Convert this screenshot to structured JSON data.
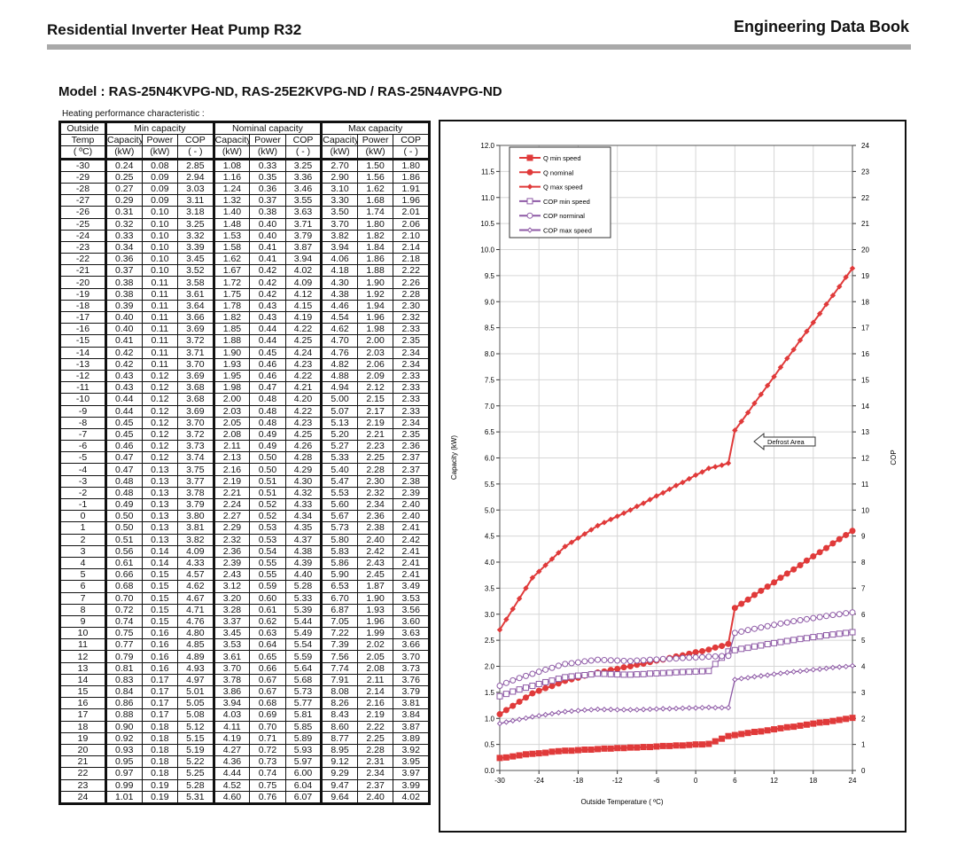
{
  "header": {
    "title": "Residential Inverter Heat Pump R32",
    "book": "Engineering Data Book"
  },
  "model": "Model  :  RAS-25N4KVPG-ND, RAS-25E2KVPG-ND / RAS-25N4AVPG-ND",
  "table": {
    "caption": "Heating performance  characteristic  :",
    "groups": [
      "Min capacity",
      "Nominal capacity",
      "Max capacity"
    ],
    "first_col": [
      "Outside",
      "Temp",
      "( ºC)"
    ],
    "sub_headers": [
      "Capacity",
      "Power",
      "COP"
    ],
    "units": [
      "(kW)",
      "(kW)",
      "( - )"
    ],
    "rows": [
      [
        "-30",
        "0.24",
        "0.08",
        "2.85",
        "1.08",
        "0.33",
        "3.25",
        "2.70",
        "1.50",
        "1.80"
      ],
      [
        "-29",
        "0.25",
        "0.09",
        "2.94",
        "1.16",
        "0.35",
        "3.36",
        "2.90",
        "1.56",
        "1.86"
      ],
      [
        "-28",
        "0.27",
        "0.09",
        "3.03",
        "1.24",
        "0.36",
        "3.46",
        "3.10",
        "1.62",
        "1.91"
      ],
      [
        "-27",
        "0.29",
        "0.09",
        "3.11",
        "1.32",
        "0.37",
        "3.55",
        "3.30",
        "1.68",
        "1.96"
      ],
      [
        "-26",
        "0.31",
        "0.10",
        "3.18",
        "1.40",
        "0.38",
        "3.63",
        "3.50",
        "1.74",
        "2.01"
      ],
      [
        "-25",
        "0.32",
        "0.10",
        "3.25",
        "1.48",
        "0.40",
        "3.71",
        "3.70",
        "1.80",
        "2.06"
      ],
      [
        "-24",
        "0.33",
        "0.10",
        "3.32",
        "1.53",
        "0.40",
        "3.79",
        "3.82",
        "1.82",
        "2.10"
      ],
      [
        "-23",
        "0.34",
        "0.10",
        "3.39",
        "1.58",
        "0.41",
        "3.87",
        "3.94",
        "1.84",
        "2.14"
      ],
      [
        "-22",
        "0.36",
        "0.10",
        "3.45",
        "1.62",
        "0.41",
        "3.94",
        "4.06",
        "1.86",
        "2.18"
      ],
      [
        "-21",
        "0.37",
        "0.10",
        "3.52",
        "1.67",
        "0.42",
        "4.02",
        "4.18",
        "1.88",
        "2.22"
      ],
      [
        "-20",
        "0.38",
        "0.11",
        "3.58",
        "1.72",
        "0.42",
        "4.09",
        "4.30",
        "1.90",
        "2.26"
      ],
      [
        "-19",
        "0.38",
        "0.11",
        "3.61",
        "1.75",
        "0.42",
        "4.12",
        "4.38",
        "1.92",
        "2.28"
      ],
      [
        "-18",
        "0.39",
        "0.11",
        "3.64",
        "1.78",
        "0.43",
        "4.15",
        "4.46",
        "1.94",
        "2.30"
      ],
      [
        "-17",
        "0.40",
        "0.11",
        "3.66",
        "1.82",
        "0.43",
        "4.19",
        "4.54",
        "1.96",
        "2.32"
      ],
      [
        "-16",
        "0.40",
        "0.11",
        "3.69",
        "1.85",
        "0.44",
        "4.22",
        "4.62",
        "1.98",
        "2.33"
      ],
      [
        "-15",
        "0.41",
        "0.11",
        "3.72",
        "1.88",
        "0.44",
        "4.25",
        "4.70",
        "2.00",
        "2.35"
      ],
      [
        "-14",
        "0.42",
        "0.11",
        "3.71",
        "1.90",
        "0.45",
        "4.24",
        "4.76",
        "2.03",
        "2.34"
      ],
      [
        "-13",
        "0.42",
        "0.11",
        "3.70",
        "1.93",
        "0.46",
        "4.23",
        "4.82",
        "2.06",
        "2.34"
      ],
      [
        "-12",
        "0.43",
        "0.12",
        "3.69",
        "1.95",
        "0.46",
        "4.22",
        "4.88",
        "2.09",
        "2.33"
      ],
      [
        "-11",
        "0.43",
        "0.12",
        "3.68",
        "1.98",
        "0.47",
        "4.21",
        "4.94",
        "2.12",
        "2.33"
      ],
      [
        "-10",
        "0.44",
        "0.12",
        "3.68",
        "2.00",
        "0.48",
        "4.20",
        "5.00",
        "2.15",
        "2.33"
      ],
      [
        "-9",
        "0.44",
        "0.12",
        "3.69",
        "2.03",
        "0.48",
        "4.22",
        "5.07",
        "2.17",
        "2.33"
      ],
      [
        "-8",
        "0.45",
        "0.12",
        "3.70",
        "2.05",
        "0.48",
        "4.23",
        "5.13",
        "2.19",
        "2.34"
      ],
      [
        "-7",
        "0.45",
        "0.12",
        "3.72",
        "2.08",
        "0.49",
        "4.25",
        "5.20",
        "2.21",
        "2.35"
      ],
      [
        "-6",
        "0.46",
        "0.12",
        "3.73",
        "2.11",
        "0.49",
        "4.26",
        "5.27",
        "2.23",
        "2.36"
      ],
      [
        "-5",
        "0.47",
        "0.12",
        "3.74",
        "2.13",
        "0.50",
        "4.28",
        "5.33",
        "2.25",
        "2.37"
      ],
      [
        "-4",
        "0.47",
        "0.13",
        "3.75",
        "2.16",
        "0.50",
        "4.29",
        "5.40",
        "2.28",
        "2.37"
      ],
      [
        "-3",
        "0.48",
        "0.13",
        "3.77",
        "2.19",
        "0.51",
        "4.30",
        "5.47",
        "2.30",
        "2.38"
      ],
      [
        "-2",
        "0.48",
        "0.13",
        "3.78",
        "2.21",
        "0.51",
        "4.32",
        "5.53",
        "2.32",
        "2.39"
      ],
      [
        "-1",
        "0.49",
        "0.13",
        "3.79",
        "2.24",
        "0.52",
        "4.33",
        "5.60",
        "2.34",
        "2.40"
      ],
      [
        "0",
        "0.50",
        "0.13",
        "3.80",
        "2.27",
        "0.52",
        "4.34",
        "5.67",
        "2.36",
        "2.40"
      ],
      [
        "1",
        "0.50",
        "0.13",
        "3.81",
        "2.29",
        "0.53",
        "4.35",
        "5.73",
        "2.38",
        "2.41"
      ],
      [
        "2",
        "0.51",
        "0.13",
        "3.82",
        "2.32",
        "0.53",
        "4.37",
        "5.80",
        "2.40",
        "2.42"
      ],
      [
        "3",
        "0.56",
        "0.14",
        "4.09",
        "2.36",
        "0.54",
        "4.38",
        "5.83",
        "2.42",
        "2.41"
      ],
      [
        "4",
        "0.61",
        "0.14",
        "4.33",
        "2.39",
        "0.55",
        "4.39",
        "5.86",
        "2.43",
        "2.41"
      ],
      [
        "5",
        "0.66",
        "0.15",
        "4.57",
        "2.43",
        "0.55",
        "4.40",
        "5.90",
        "2.45",
        "2.41"
      ],
      [
        "6",
        "0.68",
        "0.15",
        "4.62",
        "3.12",
        "0.59",
        "5.28",
        "6.53",
        "1.87",
        "3.49"
      ],
      [
        "7",
        "0.70",
        "0.15",
        "4.67",
        "3.20",
        "0.60",
        "5.33",
        "6.70",
        "1.90",
        "3.53"
      ],
      [
        "8",
        "0.72",
        "0.15",
        "4.71",
        "3.28",
        "0.61",
        "5.39",
        "6.87",
        "1.93",
        "3.56"
      ],
      [
        "9",
        "0.74",
        "0.15",
        "4.76",
        "3.37",
        "0.62",
        "5.44",
        "7.05",
        "1.96",
        "3.60"
      ],
      [
        "10",
        "0.75",
        "0.16",
        "4.80",
        "3.45",
        "0.63",
        "5.49",
        "7.22",
        "1.99",
        "3.63"
      ],
      [
        "11",
        "0.77",
        "0.16",
        "4.85",
        "3.53",
        "0.64",
        "5.54",
        "7.39",
        "2.02",
        "3.66"
      ],
      [
        "12",
        "0.79",
        "0.16",
        "4.89",
        "3.61",
        "0.65",
        "5.59",
        "7.56",
        "2.05",
        "3.70"
      ],
      [
        "13",
        "0.81",
        "0.16",
        "4.93",
        "3.70",
        "0.66",
        "5.64",
        "7.74",
        "2.08",
        "3.73"
      ],
      [
        "14",
        "0.83",
        "0.17",
        "4.97",
        "3.78",
        "0.67",
        "5.68",
        "7.91",
        "2.11",
        "3.76"
      ],
      [
        "15",
        "0.84",
        "0.17",
        "5.01",
        "3.86",
        "0.67",
        "5.73",
        "8.08",
        "2.14",
        "3.79"
      ],
      [
        "16",
        "0.86",
        "0.17",
        "5.05",
        "3.94",
        "0.68",
        "5.77",
        "8.26",
        "2.16",
        "3.81"
      ],
      [
        "17",
        "0.88",
        "0.17",
        "5.08",
        "4.03",
        "0.69",
        "5.81",
        "8.43",
        "2.19",
        "3.84"
      ],
      [
        "18",
        "0.90",
        "0.18",
        "5.12",
        "4.11",
        "0.70",
        "5.85",
        "8.60",
        "2.22",
        "3.87"
      ],
      [
        "19",
        "0.92",
        "0.18",
        "5.15",
        "4.19",
        "0.71",
        "5.89",
        "8.77",
        "2.25",
        "3.89"
      ],
      [
        "20",
        "0.93",
        "0.18",
        "5.19",
        "4.27",
        "0.72",
        "5.93",
        "8.95",
        "2.28",
        "3.92"
      ],
      [
        "21",
        "0.95",
        "0.18",
        "5.22",
        "4.36",
        "0.73",
        "5.97",
        "9.12",
        "2.31",
        "3.95"
      ],
      [
        "22",
        "0.97",
        "0.18",
        "5.25",
        "4.44",
        "0.74",
        "6.00",
        "9.29",
        "2.34",
        "3.97"
      ],
      [
        "23",
        "0.99",
        "0.19",
        "5.28",
        "4.52",
        "0.75",
        "6.04",
        "9.47",
        "2.37",
        "3.99"
      ],
      [
        "24",
        "1.01",
        "0.19",
        "5.31",
        "4.60",
        "0.76",
        "6.07",
        "9.64",
        "2.40",
        "4.02"
      ]
    ]
  },
  "chart_data": {
    "type": "line",
    "xlabel": "Outside Temperature ( ºC)",
    "ylabel": "Capacity (kW)",
    "y2label": "COP",
    "xlim": [
      -30,
      24
    ],
    "xticks": [
      -30,
      -24,
      -18,
      -12,
      -6,
      0,
      6,
      12,
      18,
      24
    ],
    "ylim": [
      0,
      12
    ],
    "ytick_step": 0.5,
    "y2lim": [
      0,
      24
    ],
    "y2tick_step": 1,
    "grid": true,
    "legend": "top-left",
    "annotation": "Defrost Area",
    "x": [
      -30,
      -29,
      -28,
      -27,
      -26,
      -25,
      -24,
      -23,
      -22,
      -21,
      -20,
      -19,
      -18,
      -17,
      -16,
      -15,
      -14,
      -13,
      -12,
      -11,
      -10,
      -9,
      -8,
      -7,
      -6,
      -5,
      -4,
      -3,
      -2,
      -1,
      0,
      1,
      2,
      3,
      4,
      5,
      6,
      7,
      8,
      9,
      10,
      11,
      12,
      13,
      14,
      15,
      16,
      17,
      18,
      19,
      20,
      21,
      22,
      23,
      24
    ],
    "series": [
      {
        "name": "Q min speed",
        "axis": "left",
        "marker": "square",
        "filled": true,
        "color": "#e03a3a",
        "values": [
          0.24,
          0.25,
          0.27,
          0.29,
          0.31,
          0.32,
          0.33,
          0.34,
          0.36,
          0.37,
          0.38,
          0.38,
          0.39,
          0.4,
          0.4,
          0.41,
          0.42,
          0.42,
          0.43,
          0.43,
          0.44,
          0.44,
          0.45,
          0.45,
          0.46,
          0.47,
          0.47,
          0.48,
          0.48,
          0.49,
          0.5,
          0.5,
          0.51,
          0.56,
          0.61,
          0.66,
          0.68,
          0.7,
          0.72,
          0.74,
          0.75,
          0.77,
          0.79,
          0.81,
          0.83,
          0.84,
          0.86,
          0.88,
          0.9,
          0.92,
          0.93,
          0.95,
          0.97,
          0.99,
          1.01
        ]
      },
      {
        "name": "Q nominal",
        "axis": "left",
        "marker": "circle",
        "filled": true,
        "color": "#e03a3a",
        "values": [
          1.08,
          1.16,
          1.24,
          1.32,
          1.4,
          1.48,
          1.53,
          1.58,
          1.62,
          1.67,
          1.72,
          1.75,
          1.78,
          1.82,
          1.85,
          1.88,
          1.9,
          1.93,
          1.95,
          1.98,
          2.0,
          2.03,
          2.05,
          2.08,
          2.11,
          2.13,
          2.16,
          2.19,
          2.21,
          2.24,
          2.27,
          2.29,
          2.32,
          2.36,
          2.39,
          2.43,
          3.12,
          3.2,
          3.28,
          3.37,
          3.45,
          3.53,
          3.61,
          3.7,
          3.78,
          3.86,
          3.94,
          4.03,
          4.11,
          4.19,
          4.27,
          4.36,
          4.44,
          4.52,
          4.6
        ]
      },
      {
        "name": "Q max speed",
        "axis": "left",
        "marker": "diamond",
        "filled": true,
        "color": "#e03a3a",
        "values": [
          2.7,
          2.9,
          3.1,
          3.3,
          3.5,
          3.7,
          3.82,
          3.94,
          4.06,
          4.18,
          4.3,
          4.38,
          4.46,
          4.54,
          4.62,
          4.7,
          4.76,
          4.82,
          4.88,
          4.94,
          5.0,
          5.07,
          5.13,
          5.2,
          5.27,
          5.33,
          5.4,
          5.47,
          5.53,
          5.6,
          5.67,
          5.73,
          5.8,
          5.83,
          5.86,
          5.9,
          6.53,
          6.7,
          6.87,
          7.05,
          7.22,
          7.39,
          7.56,
          7.74,
          7.91,
          8.08,
          8.26,
          8.43,
          8.6,
          8.77,
          8.95,
          9.12,
          9.29,
          9.47,
          9.64
        ]
      },
      {
        "name": "COP min speed",
        "axis": "right",
        "marker": "square",
        "filled": false,
        "color": "#8e5aa6",
        "values": [
          2.85,
          2.94,
          3.03,
          3.11,
          3.18,
          3.25,
          3.32,
          3.39,
          3.45,
          3.52,
          3.58,
          3.61,
          3.64,
          3.66,
          3.69,
          3.72,
          3.71,
          3.7,
          3.69,
          3.68,
          3.68,
          3.69,
          3.7,
          3.72,
          3.73,
          3.74,
          3.75,
          3.77,
          3.78,
          3.79,
          3.8,
          3.81,
          3.82,
          4.09,
          4.33,
          4.57,
          4.62,
          4.67,
          4.71,
          4.76,
          4.8,
          4.85,
          4.89,
          4.93,
          4.97,
          5.01,
          5.05,
          5.08,
          5.12,
          5.15,
          5.19,
          5.22,
          5.25,
          5.28,
          5.31
        ]
      },
      {
        "name": "COP norminal",
        "axis": "right",
        "marker": "circle",
        "filled": false,
        "color": "#8e5aa6",
        "values": [
          3.25,
          3.36,
          3.46,
          3.55,
          3.63,
          3.71,
          3.79,
          3.87,
          3.94,
          4.02,
          4.09,
          4.12,
          4.15,
          4.19,
          4.22,
          4.25,
          4.24,
          4.23,
          4.22,
          4.21,
          4.2,
          4.22,
          4.23,
          4.25,
          4.26,
          4.28,
          4.29,
          4.3,
          4.32,
          4.33,
          4.34,
          4.35,
          4.37,
          4.38,
          4.39,
          4.4,
          5.28,
          5.33,
          5.39,
          5.44,
          5.49,
          5.54,
          5.59,
          5.64,
          5.68,
          5.73,
          5.77,
          5.81,
          5.85,
          5.89,
          5.93,
          5.97,
          6.0,
          6.04,
          6.07
        ]
      },
      {
        "name": "COP max speed",
        "axis": "right",
        "marker": "diamond",
        "filled": false,
        "color": "#8e5aa6",
        "values": [
          1.8,
          1.86,
          1.91,
          1.96,
          2.01,
          2.06,
          2.1,
          2.14,
          2.18,
          2.22,
          2.26,
          2.28,
          2.3,
          2.32,
          2.33,
          2.35,
          2.34,
          2.34,
          2.33,
          2.33,
          2.33,
          2.33,
          2.34,
          2.35,
          2.36,
          2.37,
          2.37,
          2.38,
          2.39,
          2.4,
          2.4,
          2.41,
          2.42,
          2.41,
          2.41,
          2.41,
          3.49,
          3.53,
          3.56,
          3.6,
          3.63,
          3.66,
          3.7,
          3.73,
          3.76,
          3.79,
          3.81,
          3.84,
          3.87,
          3.89,
          3.92,
          3.95,
          3.97,
          3.99,
          4.02
        ]
      }
    ]
  }
}
